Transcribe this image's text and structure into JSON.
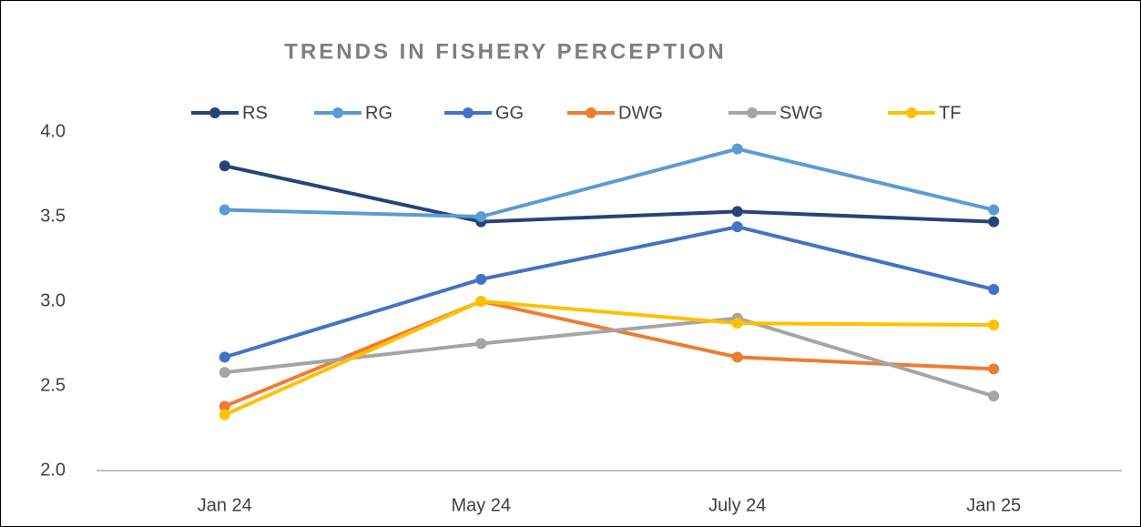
{
  "chart_data": {
    "type": "line",
    "title": "TRENDS IN FISHERY PERCEPTION",
    "categories": [
      "Jan 24",
      "May 24",
      "July 24",
      "Jan 25"
    ],
    "series": [
      {
        "name": "RS",
        "color": "#264478",
        "values": [
          3.8,
          3.47,
          3.53,
          3.47
        ]
      },
      {
        "name": "RG",
        "color": "#5b9bd5",
        "values": [
          3.54,
          3.5,
          3.9,
          3.54
        ]
      },
      {
        "name": "GG",
        "color": "#4472c4",
        "values": [
          2.67,
          3.13,
          3.44,
          3.07
        ]
      },
      {
        "name": "DWG",
        "color": "#ed7d31",
        "values": [
          2.38,
          3.0,
          2.67,
          2.6
        ]
      },
      {
        "name": "SWG",
        "color": "#a5a5a5",
        "values": [
          2.58,
          2.75,
          2.9,
          2.44
        ]
      },
      {
        "name": "TF",
        "color": "#ffc000",
        "values": [
          2.33,
          3.0,
          2.87,
          2.86
        ]
      }
    ],
    "ylim": [
      2,
      4
    ],
    "yticks": [
      {
        "value": 2,
        "label": "2.0"
      },
      {
        "value": 2.5,
        "label": "2.5"
      },
      {
        "value": 3,
        "label": "3.0"
      },
      {
        "value": 3.5,
        "label": "3.5"
      },
      {
        "value": 4,
        "label": "4.0"
      }
    ],
    "legend": "top"
  }
}
